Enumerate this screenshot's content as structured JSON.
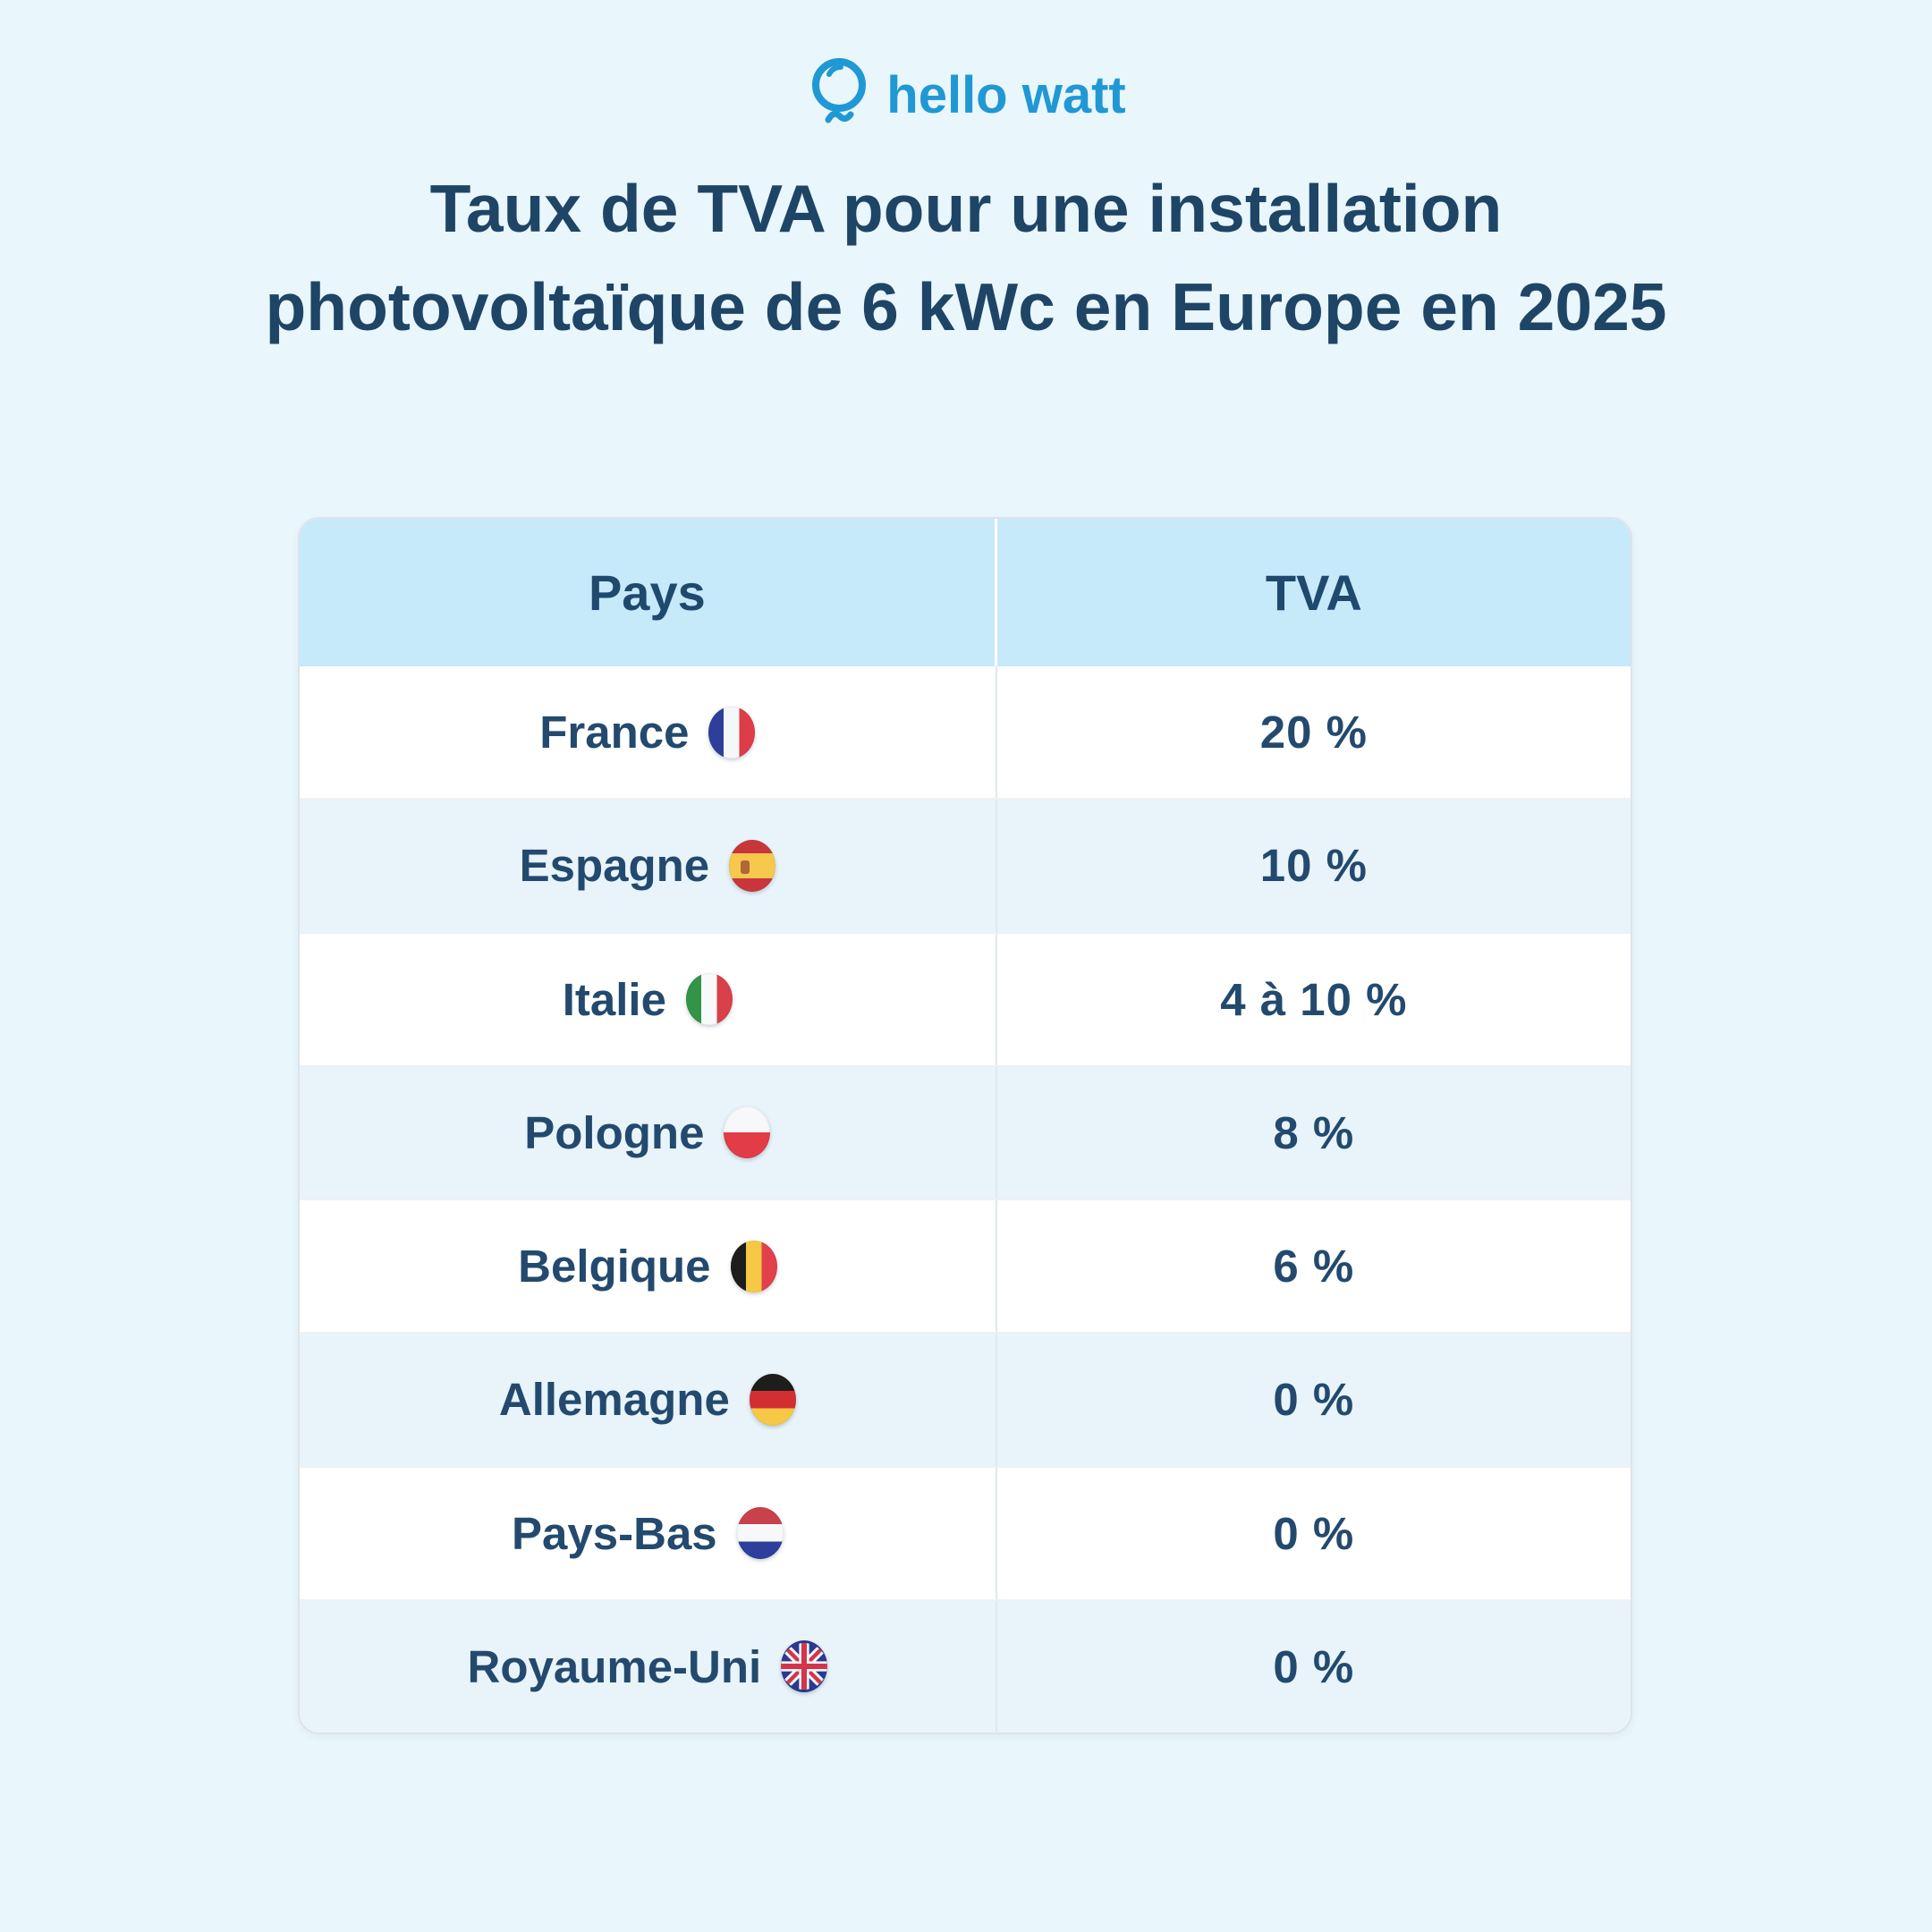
{
  "brand": {
    "name": "hello watt",
    "color": "#2098d4"
  },
  "title": {
    "line1": "Taux de TVA pour une installation",
    "line2": "photovoltaïque de 6 kWc en Europe en 2025"
  },
  "table": {
    "columns": [
      "Pays",
      "TVA"
    ],
    "rows": [
      {
        "country": "France",
        "flag": "france",
        "flag_name": "france-flag-icon",
        "tva": "20 %"
      },
      {
        "country": "Espagne",
        "flag": "espagne",
        "flag_name": "spain-flag-icon",
        "tva": "10 %"
      },
      {
        "country": "Italie",
        "flag": "italie",
        "flag_name": "italy-flag-icon",
        "tva": "4 à 10 %"
      },
      {
        "country": "Pologne",
        "flag": "pologne",
        "flag_name": "poland-flag-icon",
        "tva": "8 %"
      },
      {
        "country": "Belgique",
        "flag": "belgique",
        "flag_name": "belgium-flag-icon",
        "tva": "6 %"
      },
      {
        "country": "Allemagne",
        "flag": "allemagne",
        "flag_name": "germany-flag-icon",
        "tva": "0 %"
      },
      {
        "country": "Pays-Bas",
        "flag": "pays-bas",
        "flag_name": "netherlands-flag-icon",
        "tva": "0 %"
      },
      {
        "country": "Royaume-Uni",
        "flag": "royaume-uni",
        "flag_name": "uk-flag-icon",
        "tva": "0 %"
      }
    ]
  },
  "colors": {
    "background": "#e9f6fc",
    "header_row": "#c6eafa",
    "alt_row": "#e8f4fa",
    "text_navy": "#234a6e",
    "title_navy": "#1e4566",
    "brand_blue": "#2098d4"
  },
  "chart_data": {
    "type": "table",
    "title": "Taux de TVA pour une installation photovoltaïque de 6 kWc en Europe en 2025",
    "columns": [
      "Pays",
      "TVA"
    ],
    "rows": [
      [
        "France",
        "20 %"
      ],
      [
        "Espagne",
        "10 %"
      ],
      [
        "Italie",
        "4 à 10 %"
      ],
      [
        "Pologne",
        "8 %"
      ],
      [
        "Belgique",
        "6 %"
      ],
      [
        "Allemagne",
        "0 %"
      ],
      [
        "Pays-Bas",
        "0 %"
      ],
      [
        "Royaume-Uni",
        "0 %"
      ]
    ],
    "values_numeric_percent": {
      "France": 20,
      "Espagne": 10,
      "Italie": [
        4,
        10
      ],
      "Pologne": 8,
      "Belgique": 6,
      "Allemagne": 0,
      "Pays-Bas": 0,
      "Royaume-Uni": 0
    }
  }
}
